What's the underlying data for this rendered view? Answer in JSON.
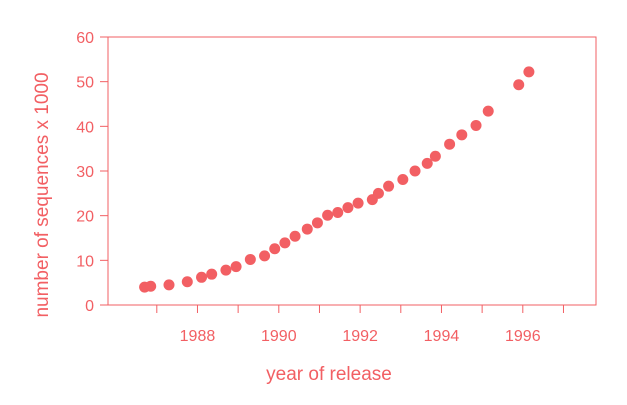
{
  "chart_data": {
    "type": "scatter",
    "title": "",
    "xlabel": "year of release",
    "ylabel": "number of sequences x 1000",
    "xlim": [
      1985.8,
      1997.8
    ],
    "ylim": [
      0,
      60
    ],
    "xticks": [
      1988,
      1990,
      1992,
      1994,
      1996
    ],
    "yticks": [
      0,
      10,
      20,
      30,
      40,
      50,
      60
    ],
    "grid": false,
    "color": "#f25f63",
    "points": [
      {
        "x": 1986.7,
        "y": 4.0
      },
      {
        "x": 1986.85,
        "y": 4.2
      },
      {
        "x": 1987.3,
        "y": 4.5
      },
      {
        "x": 1987.75,
        "y": 5.2
      },
      {
        "x": 1988.1,
        "y": 6.2
      },
      {
        "x": 1988.35,
        "y": 6.9
      },
      {
        "x": 1988.7,
        "y": 7.8
      },
      {
        "x": 1988.95,
        "y": 8.6
      },
      {
        "x": 1989.3,
        "y": 10.2
      },
      {
        "x": 1989.65,
        "y": 11.0
      },
      {
        "x": 1989.9,
        "y": 12.6
      },
      {
        "x": 1990.15,
        "y": 13.9
      },
      {
        "x": 1990.4,
        "y": 15.4
      },
      {
        "x": 1990.7,
        "y": 17.0
      },
      {
        "x": 1990.95,
        "y": 18.4
      },
      {
        "x": 1991.2,
        "y": 20.1
      },
      {
        "x": 1991.45,
        "y": 20.7
      },
      {
        "x": 1991.7,
        "y": 21.8
      },
      {
        "x": 1991.95,
        "y": 22.8
      },
      {
        "x": 1992.3,
        "y": 23.6
      },
      {
        "x": 1992.45,
        "y": 25.0
      },
      {
        "x": 1992.7,
        "y": 26.6
      },
      {
        "x": 1993.05,
        "y": 28.1
      },
      {
        "x": 1993.35,
        "y": 30.0
      },
      {
        "x": 1993.65,
        "y": 31.7
      },
      {
        "x": 1993.85,
        "y": 33.3
      },
      {
        "x": 1994.2,
        "y": 36.0
      },
      {
        "x": 1994.5,
        "y": 38.1
      },
      {
        "x": 1994.85,
        "y": 40.2
      },
      {
        "x": 1995.15,
        "y": 43.4
      },
      {
        "x": 1995.9,
        "y": 49.3
      },
      {
        "x": 1996.15,
        "y": 52.2
      }
    ]
  }
}
